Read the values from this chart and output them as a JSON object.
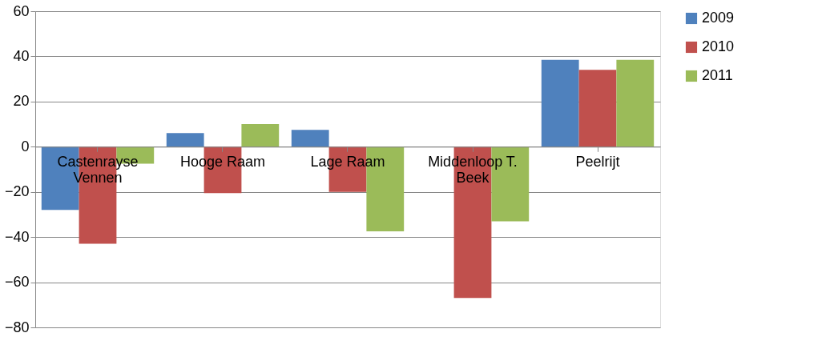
{
  "chart_data": {
    "type": "bar",
    "categories": [
      "Castenrayse Vennen",
      "Hooge Raam",
      "Lage Raam",
      "Middenloop T. Beek",
      "Peelrijt"
    ],
    "series": [
      {
        "name": "2009",
        "color": "#4f81bd",
        "values": [
          -28,
          6,
          7.5,
          null,
          38.5
        ]
      },
      {
        "name": "2010",
        "color": "#c0504d",
        "values": [
          -43,
          -20.5,
          -20,
          -67,
          34
        ]
      },
      {
        "name": "2011",
        "color": "#9bbb59",
        "values": [
          -7.5,
          10,
          -37.5,
          -33,
          38.5
        ]
      }
    ],
    "ylim": [
      -80,
      60
    ],
    "yticks": [
      -80,
      -60,
      -40,
      -20,
      0,
      20,
      40,
      60
    ],
    "grid": "y",
    "legend": "right"
  }
}
